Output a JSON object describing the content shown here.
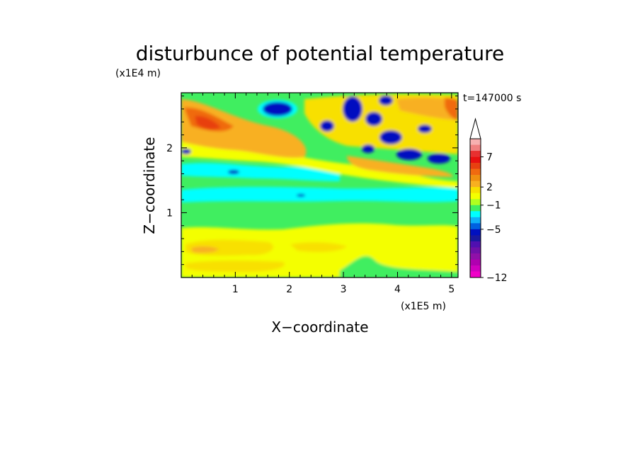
{
  "chart_data": {
    "type": "heatmap",
    "title": "disturbunce of potential temperature",
    "xlabel": "X−coordinate",
    "ylabel": "Z−coordinate",
    "x_scale_label": "(x1E5 m)",
    "y_scale_label": "(x1E4 m)",
    "time_label": "t=147000 s",
    "xlim": [
      0,
      5.12
    ],
    "ylim": [
      0,
      2.85
    ],
    "x_ticks": [
      "1",
      "2",
      "3",
      "4",
      "5"
    ],
    "y_ticks": [
      "1",
      "2"
    ],
    "x_tick_values": [
      1,
      2,
      3,
      4,
      5
    ],
    "y_tick_values": [
      1,
      2
    ],
    "grid": false,
    "colorbar": {
      "placement": "right",
      "extend": "max",
      "labels": [
        "7",
        "2",
        "−1",
        "−5",
        "−12"
      ],
      "label_values": [
        7,
        2,
        -1,
        -5,
        -12
      ],
      "levels_top_to_bottom": [
        10,
        9,
        8,
        7,
        6,
        5,
        4,
        3,
        2,
        1,
        0,
        -1,
        -2,
        -3,
        -4,
        -5,
        -6,
        -7,
        -8,
        -9,
        -10,
        -11,
        -12
      ],
      "colors_top_to_bottom": [
        "#f7b0b0",
        "#f08080",
        "#e83030",
        "#e81010",
        "#e84010",
        "#f06a10",
        "#f09010",
        "#f8b020",
        "#f8e000",
        "#f4ff00",
        "#b0ff20",
        "#40ee60",
        "#00ffff",
        "#10b0f8",
        "#0060e0",
        "#0010c0",
        "#1818a0",
        "#5010b0",
        "#7010a8",
        "#9010a8",
        "#b000b0",
        "#d000c0",
        "#f000c8"
      ]
    },
    "field_description_levels": {
      "background_lower": 0,
      "warm_upper_left": 3,
      "cold_cells": -4
    }
  }
}
